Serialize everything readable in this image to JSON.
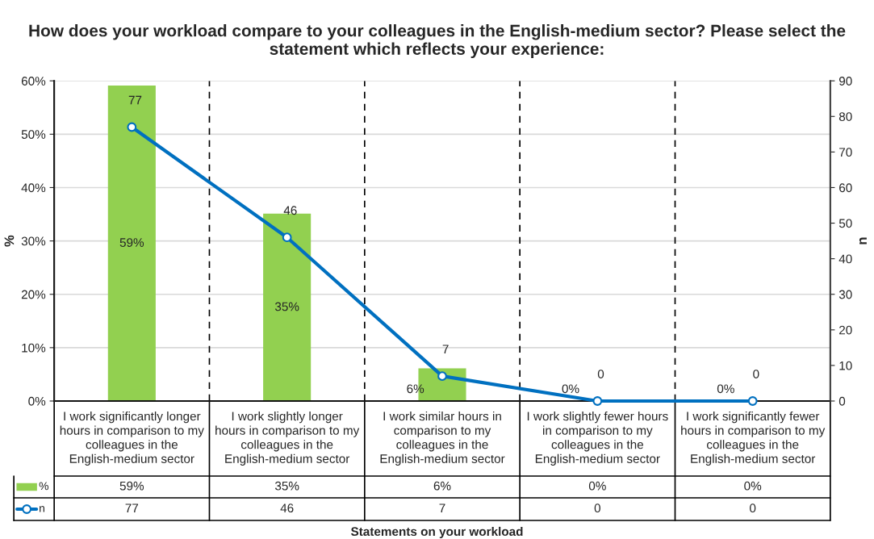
{
  "chart_data": {
    "type": "bar",
    "title": "How does your workload compare to your colleagues in the English-medium sector? Please select the statement which reflects your experience:",
    "xlabel": "Statements on your workload",
    "ylabel": "%",
    "y2label": "n",
    "categories": [
      "I work significantly longer hours in comparison to my colleagues in the English-medium sector",
      "I work slightly longer hours in comparison to my colleagues in the English-medium sector",
      "I work similar hours in comparison to my colleagues in the English-medium sector",
      "I work slightly fewer hours in comparison to my colleagues in the English-medium sector",
      "I work significantly fewer hours in comparison to my colleagues in the English-medium sector"
    ],
    "series": [
      {
        "name": "%",
        "color": "#92d050",
        "values": [
          59,
          35,
          6,
          0,
          0
        ],
        "value_labels": [
          "59%",
          "35%",
          "6%",
          "0%",
          "0%"
        ]
      },
      {
        "name": "n",
        "type": "line",
        "axis": "y2",
        "color": "#0070c0",
        "marker": "circle",
        "line_style": "solid",
        "values": [
          77,
          46,
          7,
          0,
          0
        ],
        "value_labels": [
          "77",
          "46",
          "7",
          "0",
          "0"
        ]
      }
    ],
    "ylim": [
      0,
      60
    ],
    "yticks": [
      {
        "value": 0,
        "label": "0%"
      },
      {
        "value": 10,
        "label": "10%"
      },
      {
        "value": 20,
        "label": "20%"
      },
      {
        "value": 30,
        "label": "30%"
      },
      {
        "value": 40,
        "label": "40%"
      },
      {
        "value": 50,
        "label": "50%"
      },
      {
        "value": 60,
        "label": "60%"
      }
    ],
    "y2lim": [
      0,
      90
    ],
    "y2ticks": [
      0,
      10,
      20,
      30,
      40,
      50,
      60,
      70,
      80,
      90
    ],
    "grid": "y",
    "legend": "bottom"
  }
}
